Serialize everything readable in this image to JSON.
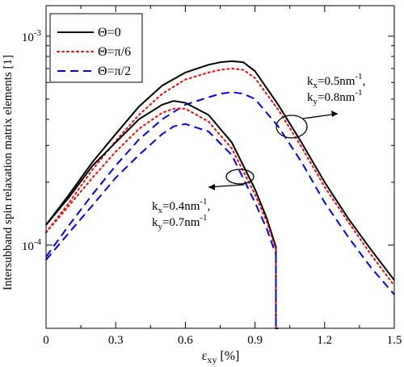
{
  "chart_data": {
    "type": "line",
    "xlabel": {
      "main": "ε",
      "sub": "xy",
      "unit": " [%]"
    },
    "ylabel": "Intersubband spin relaxation matrix elements [1]",
    "xlim": [
      0,
      1.5
    ],
    "ylim": [
      4e-05,
      0.0014
    ],
    "yscale": "log",
    "grid": false,
    "xticks": [
      0,
      0.3,
      0.6,
      0.9,
      1.2,
      1.5
    ],
    "xtick_labels": [
      "0",
      "0.3",
      "0.6",
      "0.9",
      "1.2",
      "1.5"
    ],
    "yticks": [
      0.0001,
      0.001
    ],
    "ytick_labels": [
      {
        "base": "10",
        "exp": "-4"
      },
      {
        "base": "10",
        "exp": "-3"
      }
    ],
    "legend": {
      "placement": "top-left",
      "entries": [
        {
          "label": "Θ=0",
          "color": "#000000",
          "dash": "solid"
        },
        {
          "label": "Θ=π/6",
          "color": "#ff0000",
          "dash": "dotted"
        },
        {
          "label": "Θ=π/2",
          "color": "#0000ff",
          "dash": "dashed"
        }
      ]
    },
    "annotations": [
      {
        "lines": [
          {
            "k": "k",
            "sub": "x",
            "val": "=0.5nm",
            "sup": "-1",
            "tail": ","
          },
          {
            "k": "k",
            "sub": "y",
            "val": "=0.8nm",
            "sup": "-1",
            "tail": ""
          }
        ],
        "arrow": "right",
        "group": "upper"
      },
      {
        "lines": [
          {
            "k": "k",
            "sub": "x",
            "val": "=0.4nm",
            "sup": "-1",
            "tail": ","
          },
          {
            "k": "k",
            "sub": "y",
            "val": "=0.7nm",
            "sup": "-1",
            "tail": ""
          }
        ],
        "arrow": "left",
        "group": "lower"
      }
    ],
    "series": [
      {
        "group": "upper",
        "theta": "0",
        "color": "#000000",
        "dash": "solid",
        "x": [
          0,
          0.1,
          0.2,
          0.3,
          0.4,
          0.5,
          0.6,
          0.7,
          0.75,
          0.8,
          0.85,
          0.9,
          1.0,
          1.1,
          1.2,
          1.3,
          1.4,
          1.5
        ],
        "y": [
          0.000125,
          0.000175,
          0.00025,
          0.00034,
          0.00046,
          0.00058,
          0.00067,
          0.00073,
          0.00075,
          0.00076,
          0.00075,
          0.00068,
          0.00047,
          0.00031,
          0.0002,
          0.000135,
          9.5e-05,
          6.8e-05
        ]
      },
      {
        "group": "upper",
        "theta": "π/6",
        "color": "#ff0000",
        "dash": "dotted",
        "x": [
          0,
          0.1,
          0.2,
          0.3,
          0.4,
          0.5,
          0.6,
          0.7,
          0.75,
          0.8,
          0.85,
          0.9,
          1.0,
          1.1,
          1.2,
          1.3,
          1.4,
          1.5
        ],
        "y": [
          0.000115,
          0.00016,
          0.00023,
          0.000315,
          0.00042,
          0.00053,
          0.00062,
          0.00067,
          0.00069,
          0.0007,
          0.00069,
          0.00063,
          0.000445,
          0.000295,
          0.00019,
          0.00013,
          9e-05,
          6.4e-05
        ]
      },
      {
        "group": "upper",
        "theta": "π/2",
        "color": "#0000ff",
        "dash": "dashed",
        "x": [
          0,
          0.1,
          0.2,
          0.3,
          0.4,
          0.5,
          0.6,
          0.7,
          0.75,
          0.8,
          0.85,
          0.9,
          1.0,
          1.1,
          1.2,
          1.3,
          1.4,
          1.5
        ],
        "y": [
          8.8e-05,
          0.000125,
          0.000175,
          0.00024,
          0.00032,
          0.0004,
          0.00047,
          0.00051,
          0.00053,
          0.00054,
          0.00053,
          0.0005,
          0.00037,
          0.00025,
          0.00016,
          0.00011,
          7.8e-05,
          5.8e-05
        ]
      },
      {
        "group": "lower",
        "theta": "0",
        "color": "#000000",
        "dash": "solid",
        "x": [
          0,
          0.1,
          0.2,
          0.3,
          0.4,
          0.5,
          0.55,
          0.6,
          0.7,
          0.8,
          0.9,
          0.95,
          0.99,
          0.99,
          1.0
        ],
        "y": [
          0.000125,
          0.00017,
          0.00024,
          0.00031,
          0.0004,
          0.00047,
          0.00049,
          0.00048,
          0.00042,
          0.00031,
          0.000185,
          0.000135,
          9.8e-05,
          4e-05,
          4e-05
        ]
      },
      {
        "group": "lower",
        "theta": "π/6",
        "color": "#ff0000",
        "dash": "dotted",
        "x": [
          0,
          0.1,
          0.2,
          0.3,
          0.4,
          0.5,
          0.55,
          0.6,
          0.7,
          0.8,
          0.9,
          0.95,
          0.99,
          0.99
        ],
        "y": [
          0.000115,
          0.000155,
          0.00021,
          0.00028,
          0.00036,
          0.00043,
          0.00045,
          0.00045,
          0.00039,
          0.00029,
          0.000175,
          0.00013,
          9.5e-05,
          4e-05
        ]
      },
      {
        "group": "lower",
        "theta": "π/2",
        "color": "#0000ff",
        "dash": "dashed",
        "x": [
          0,
          0.1,
          0.2,
          0.3,
          0.4,
          0.5,
          0.55,
          0.6,
          0.7,
          0.8,
          0.9,
          0.95,
          0.99,
          0.99
        ],
        "y": [
          8.5e-05,
          0.000115,
          0.000155,
          0.00021,
          0.00027,
          0.00034,
          0.00037,
          0.00038,
          0.00035,
          0.00027,
          0.00016,
          0.00012,
          9e-05,
          4e-05
        ]
      }
    ]
  }
}
